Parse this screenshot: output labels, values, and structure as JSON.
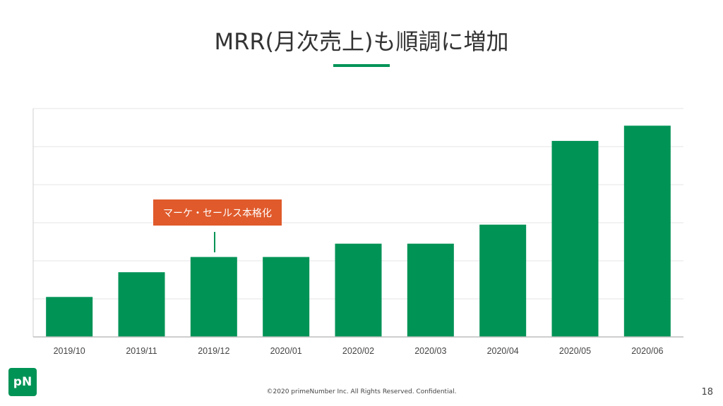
{
  "slide": {
    "title": "MRR(月次売上)も順調に増加",
    "footer": "©2020 primeNumber Inc. All Rights Reserved. Confidential.",
    "page_number": "18",
    "logo_text": "pN",
    "accent_color": "#009356",
    "callout_color": "#e05a2b"
  },
  "callout": {
    "label": "マーケ・セールス本格化",
    "category": "2019/12"
  },
  "chart_data": {
    "type": "bar",
    "categories": [
      "2019/10",
      "2019/11",
      "2019/12",
      "2020/01",
      "2020/02",
      "2020/03",
      "2020/04",
      "2020/05",
      "2020/06"
    ],
    "values": [
      1.05,
      1.7,
      2.1,
      2.1,
      2.45,
      2.45,
      2.95,
      5.15,
      5.55
    ],
    "ylim": [
      0,
      6
    ],
    "y_gridlines": [
      1,
      2,
      3,
      4,
      5,
      6
    ],
    "y_tick_labels_shown": false,
    "grid": true,
    "legend": "none",
    "bar_color": "#009356",
    "title": "",
    "xlabel": "",
    "ylabel": ""
  }
}
